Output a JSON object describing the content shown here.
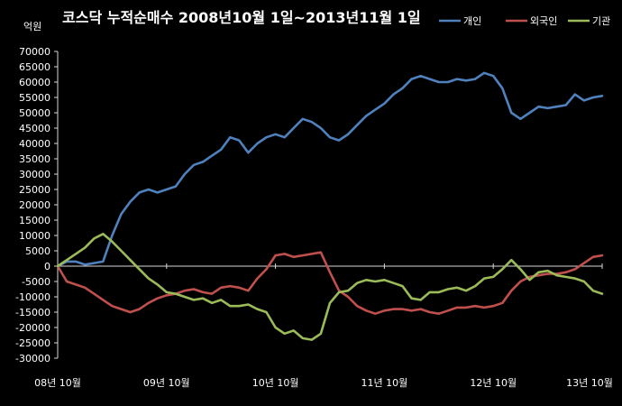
{
  "chart_data": {
    "type": "line",
    "title": "코스닥 누적순매수 2008년10월 1일~2013년11월 1일",
    "unit_label": "억원",
    "ylim": [
      -30000,
      70000
    ],
    "y_ticks": [
      70000,
      65000,
      60000,
      55000,
      50000,
      45000,
      40000,
      35000,
      30000,
      25000,
      20000,
      15000,
      10000,
      5000,
      0,
      -5000,
      -10000,
      -15000,
      -20000,
      -25000,
      -30000
    ],
    "x_ticks": [
      "08년 10월",
      "09년 10월",
      "10년 10월",
      "11년 10월",
      "12년 10월",
      "13년 10월"
    ],
    "x_tick_pos": [
      0,
      12,
      24,
      36,
      48,
      60
    ],
    "legend_position": "top-right",
    "grid": false,
    "series": [
      {
        "name": "개인",
        "color": "#4f81bd",
        "x": [
          0,
          1,
          2,
          3,
          4,
          5,
          6,
          7,
          8,
          9,
          10,
          11,
          12,
          13,
          14,
          15,
          16,
          17,
          18,
          19,
          20,
          21,
          22,
          23,
          24,
          25,
          26,
          27,
          28,
          29,
          30,
          31,
          32,
          33,
          34,
          35,
          36,
          37,
          38,
          39,
          40,
          41,
          42,
          43,
          44,
          45,
          46,
          47,
          48,
          49,
          50,
          51,
          52,
          53,
          54,
          55,
          56,
          57,
          58,
          59,
          60
        ],
        "values": [
          0,
          1500,
          1500,
          500,
          1000,
          1500,
          10000,
          17000,
          21000,
          24000,
          25000,
          24000,
          25000,
          26000,
          30000,
          33000,
          34000,
          36000,
          38000,
          42000,
          41000,
          37000,
          40000,
          42000,
          43000,
          42000,
          45000,
          48000,
          47000,
          45000,
          42000,
          41000,
          43000,
          46000,
          49000,
          51000,
          53000,
          56000,
          58000,
          61000,
          62000,
          61000,
          60000,
          60000,
          61000,
          60500,
          61000,
          63000,
          62000,
          58000,
          50000,
          48000,
          50000,
          52000,
          51500,
          52000,
          52500,
          56000,
          54000,
          55000,
          55500
        ]
      },
      {
        "name": "외국인",
        "color": "#c0504d",
        "x": [
          0,
          1,
          2,
          3,
          4,
          5,
          6,
          7,
          8,
          9,
          10,
          11,
          12,
          13,
          14,
          15,
          16,
          17,
          18,
          19,
          20,
          21,
          22,
          23,
          24,
          25,
          26,
          27,
          28,
          29,
          30,
          31,
          32,
          33,
          34,
          35,
          36,
          37,
          38,
          39,
          40,
          41,
          42,
          43,
          44,
          45,
          46,
          47,
          48,
          49,
          50,
          51,
          52,
          53,
          54,
          55,
          56,
          57,
          58,
          59,
          60
        ],
        "values": [
          0,
          -5000,
          -6000,
          -7000,
          -9000,
          -11000,
          -13000,
          -14000,
          -15000,
          -14000,
          -12000,
          -10500,
          -9500,
          -9000,
          -8000,
          -7500,
          -8500,
          -9000,
          -7000,
          -6500,
          -7000,
          -8000,
          -4000,
          -1000,
          3500,
          4000,
          3000,
          3500,
          4000,
          4500,
          -2000,
          -8000,
          -10000,
          -13000,
          -14500,
          -15500,
          -14500,
          -14000,
          -14000,
          -14500,
          -14000,
          -15000,
          -15500,
          -14500,
          -13500,
          -13500,
          -13000,
          -13500,
          -13000,
          -12000,
          -8000,
          -5000,
          -3500,
          -3000,
          -2500,
          -2500,
          -2000,
          -1000,
          1000,
          3000,
          3500
        ]
      },
      {
        "name": "기관",
        "color": "#9bbb59",
        "x": [
          0,
          1,
          2,
          3,
          4,
          5,
          6,
          7,
          8,
          9,
          10,
          11,
          12,
          13,
          14,
          15,
          16,
          17,
          18,
          19,
          20,
          21,
          22,
          23,
          24,
          25,
          26,
          27,
          28,
          29,
          30,
          31,
          32,
          33,
          34,
          35,
          36,
          37,
          38,
          39,
          40,
          41,
          42,
          43,
          44,
          45,
          46,
          47,
          48,
          49,
          50,
          51,
          52,
          53,
          54,
          55,
          56,
          57,
          58,
          59,
          60
        ],
        "values": [
          0,
          2000,
          4000,
          6000,
          9000,
          10500,
          8000,
          5000,
          2000,
          -1000,
          -4000,
          -6000,
          -8500,
          -9000,
          -10000,
          -11000,
          -10500,
          -12000,
          -11000,
          -13000,
          -13000,
          -12500,
          -14000,
          -15000,
          -20000,
          -22000,
          -21000,
          -23500,
          -24000,
          -22000,
          -12000,
          -8500,
          -8000,
          -5500,
          -4500,
          -5000,
          -4500,
          -5500,
          -6500,
          -10500,
          -11000,
          -8500,
          -8500,
          -7500,
          -7000,
          -8000,
          -6500,
          -4000,
          -3500,
          -1000,
          2000,
          -1000,
          -4500,
          -2000,
          -1500,
          -3000,
          -3500,
          -4000,
          -5000,
          -8000,
          -9000
        ]
      }
    ]
  }
}
